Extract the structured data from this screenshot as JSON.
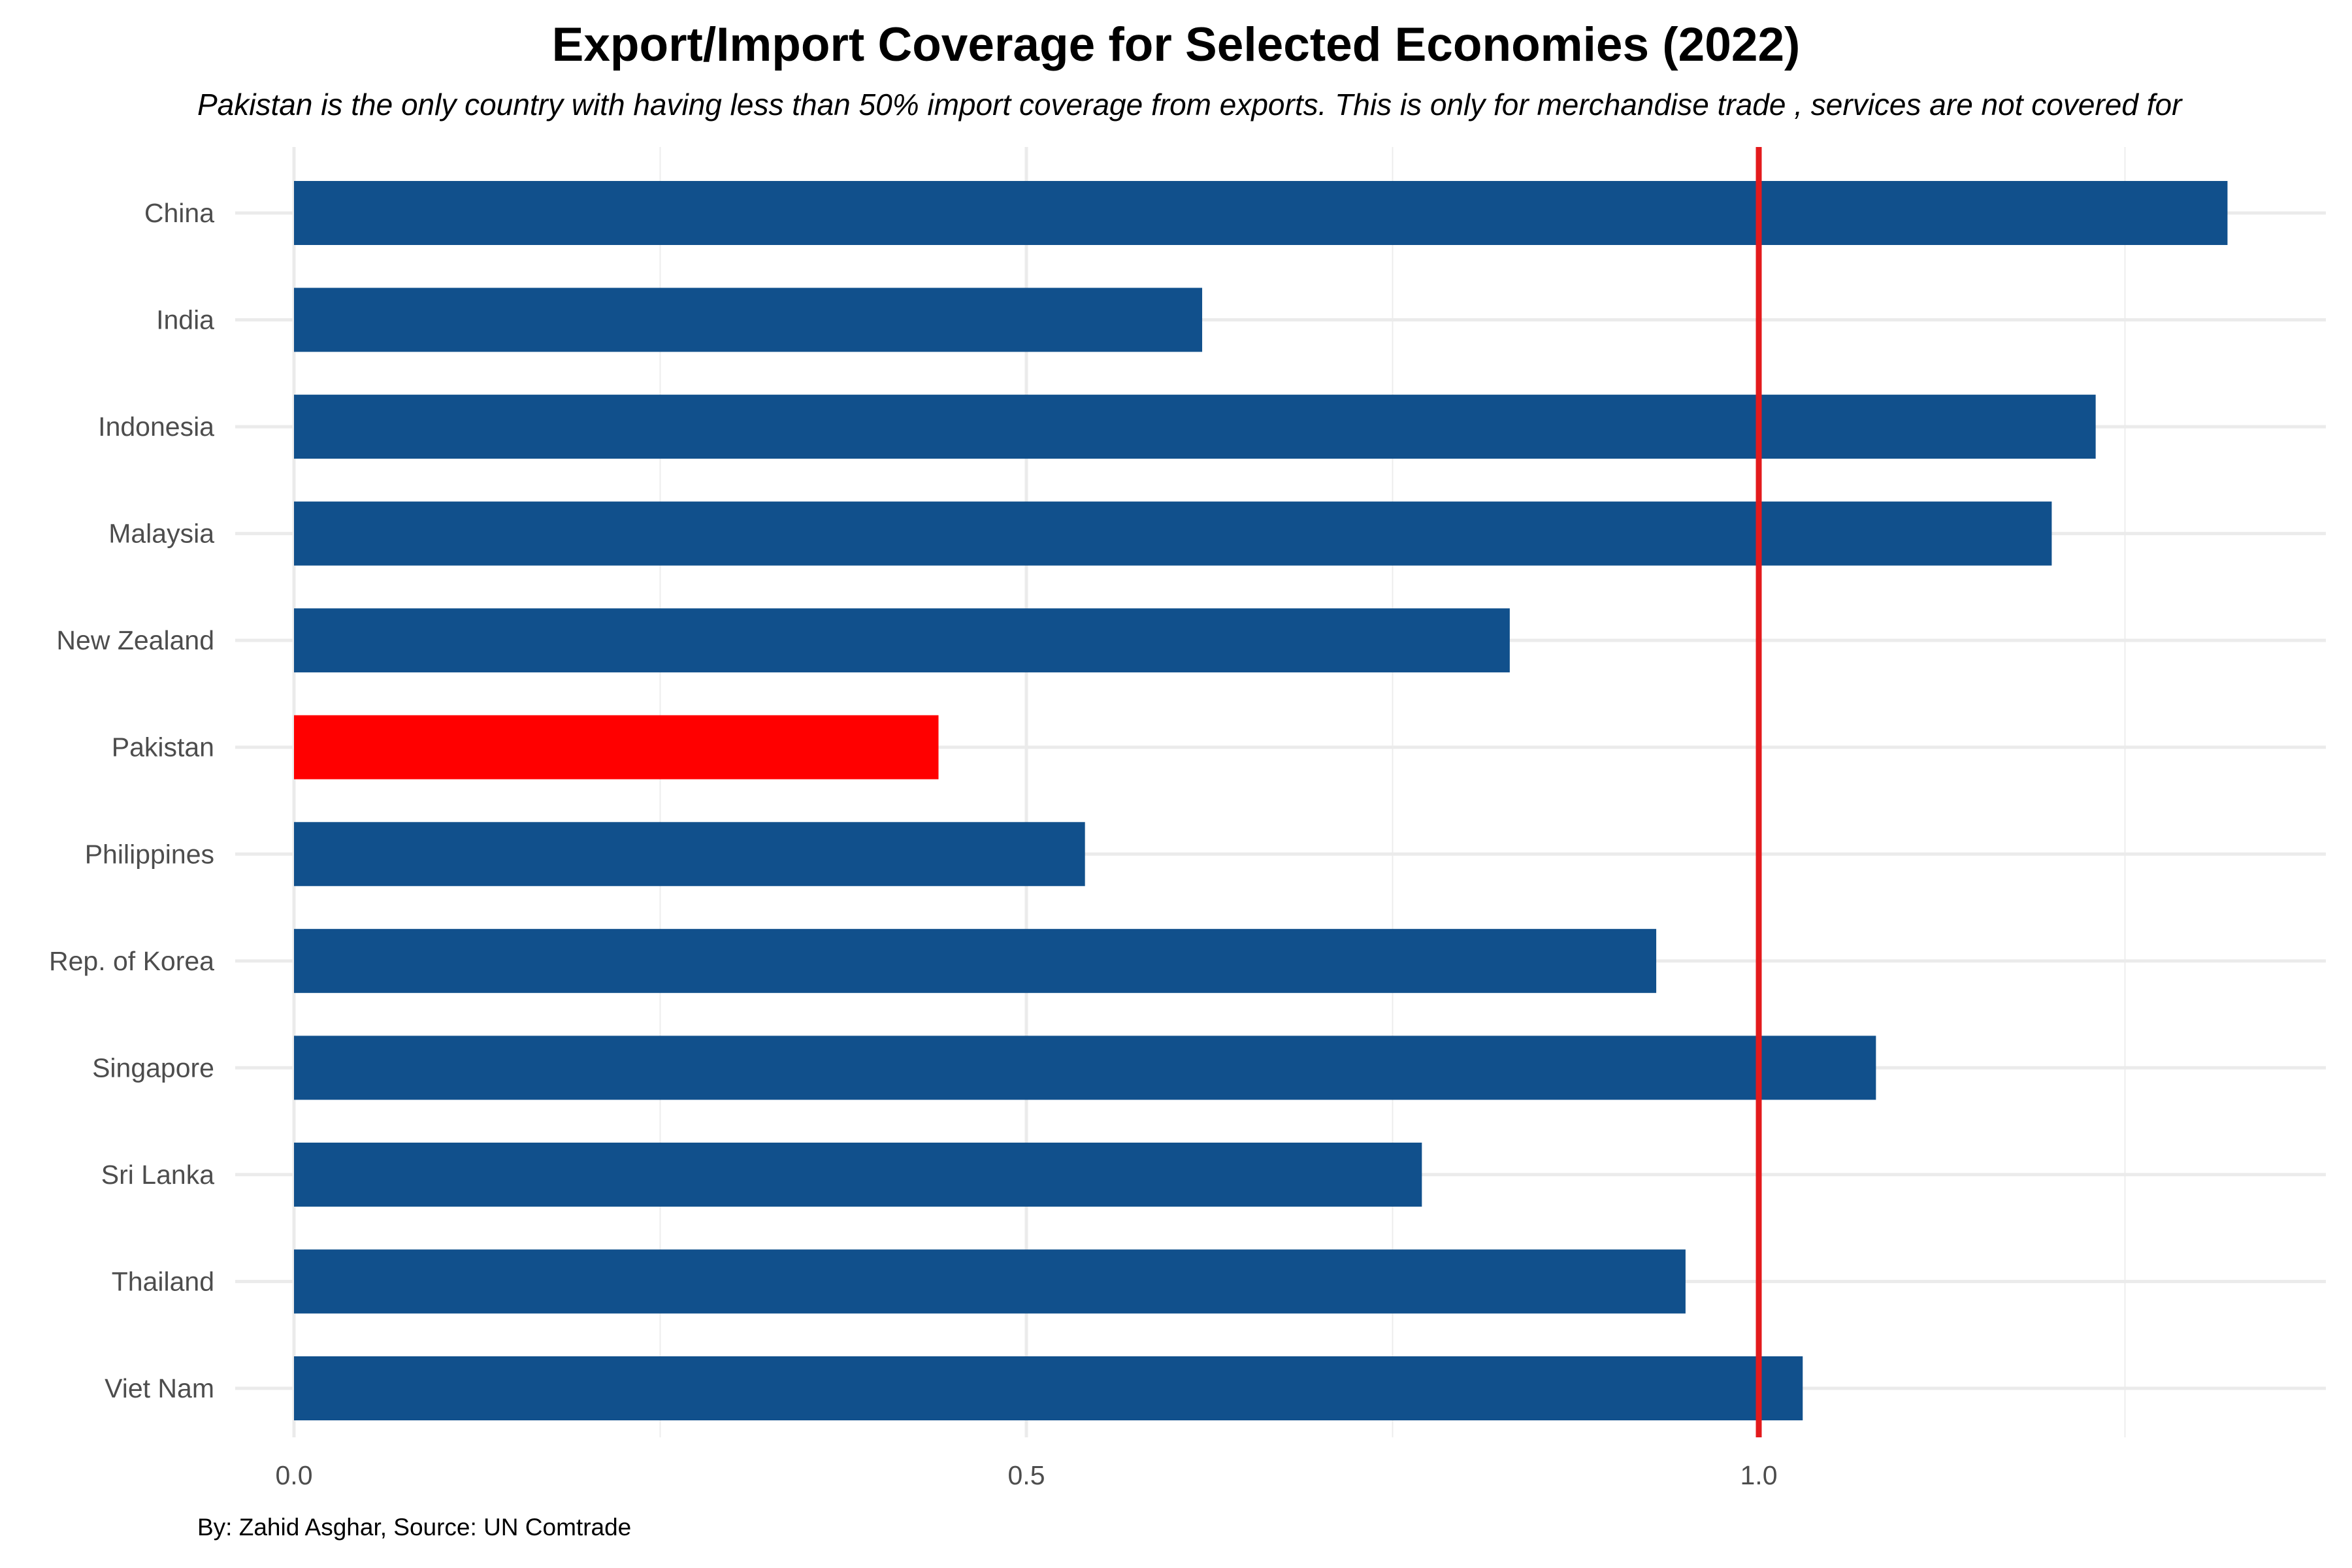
{
  "chart_data": {
    "type": "bar",
    "orientation": "horizontal",
    "title": "Export/Import Coverage for Selected Economies (2022)",
    "subtitle": "Pakistan is the only country with having less than 50% import coverage from exports. This is only for merchandise trade , services are not covered for",
    "caption": "By: Zahid Asghar, Source: UN Comtrade",
    "xlabel": "",
    "ylabel": "",
    "categories": [
      "China",
      "India",
      "Indonesia",
      "Malaysia",
      "New Zealand",
      "Pakistan",
      "Philippines",
      "Rep. of Korea",
      "Singapore",
      "Sri Lanka",
      "Thailand",
      "Viet Nam"
    ],
    "values": [
      1.32,
      0.62,
      1.23,
      1.2,
      0.83,
      0.44,
      0.54,
      0.93,
      1.08,
      0.77,
      0.95,
      1.03
    ],
    "xlim": [
      0,
      1.39
    ],
    "x_ticks": [
      "0.0",
      "0.5",
      "1.0"
    ],
    "x_tick_values": [
      0,
      0.5,
      1.0
    ],
    "reference_line": 1.0,
    "bar_color": "#11508c",
    "highlight_category": "Pakistan",
    "highlight_color": "#ff0000",
    "reference_line_color": "#e31a1c",
    "grid": true,
    "legend": "none"
  }
}
